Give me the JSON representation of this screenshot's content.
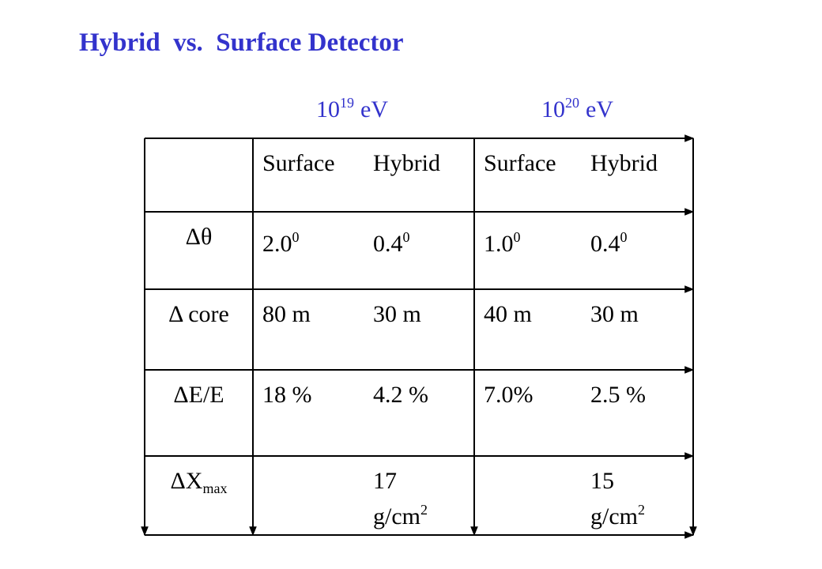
{
  "title": "Hybrid  vs.  Surface Detector",
  "energies": [
    {
      "base": "10",
      "exponent": "19",
      "unit": "eV"
    },
    {
      "base": "10",
      "exponent": "20",
      "unit": "eV"
    }
  ],
  "table": {
    "rows": [
      [
        {
          "lines": []
        },
        {
          "lines": [
            [
              {
                "text": "Surface"
              }
            ]
          ]
        },
        {
          "lines": [
            [
              {
                "text": "Hybrid"
              }
            ]
          ]
        },
        {
          "lines": [
            [
              {
                "text": "Surface"
              }
            ]
          ]
        },
        {
          "lines": [
            [
              {
                "text": "Hybrid"
              }
            ]
          ]
        }
      ],
      [
        {
          "lines": [
            [
              {
                "text": "Δθ"
              }
            ]
          ]
        },
        {
          "lines": [
            [
              {
                "text": "2.0"
              },
              {
                "text": "0",
                "pos": "sup"
              }
            ]
          ]
        },
        {
          "lines": [
            [
              {
                "text": "0.4"
              },
              {
                "text": "0",
                "pos": "sup"
              }
            ]
          ]
        },
        {
          "lines": [
            [
              {
                "text": "1.0"
              },
              {
                "text": "0",
                "pos": "sup"
              }
            ]
          ]
        },
        {
          "lines": [
            [
              {
                "text": "0.4"
              },
              {
                "text": "0",
                "pos": "sup"
              }
            ]
          ]
        }
      ],
      [
        {
          "lines": [
            [
              {
                "text": "Δ core"
              }
            ]
          ]
        },
        {
          "lines": [
            [
              {
                "text": "80 m"
              }
            ]
          ]
        },
        {
          "lines": [
            [
              {
                "text": "30 m"
              }
            ]
          ]
        },
        {
          "lines": [
            [
              {
                "text": "40 m"
              }
            ]
          ]
        },
        {
          "lines": [
            [
              {
                "text": "30 m"
              }
            ]
          ]
        }
      ],
      [
        {
          "lines": [
            [
              {
                "text": "ΔE/E"
              }
            ]
          ]
        },
        {
          "lines": [
            [
              {
                "text": "18 %"
              }
            ]
          ]
        },
        {
          "lines": [
            [
              {
                "text": "4.2 %"
              }
            ]
          ]
        },
        {
          "lines": [
            [
              {
                "text": "7.0%"
              }
            ]
          ]
        },
        {
          "lines": [
            [
              {
                "text": "2.5 %"
              }
            ]
          ]
        }
      ],
      [
        {
          "lines": [
            [
              {
                "text": "ΔX"
              },
              {
                "text": "max",
                "pos": "sub"
              }
            ]
          ]
        },
        {
          "lines": []
        },
        {
          "lines": [
            [
              {
                "text": "17"
              }
            ],
            [
              {
                "text": "g/cm"
              },
              {
                "text": "2",
                "pos": "sup"
              }
            ]
          ]
        },
        {
          "lines": []
        },
        {
          "lines": [
            [
              {
                "text": "15"
              }
            ],
            [
              {
                "text": "g/cm"
              },
              {
                "text": "2",
                "pos": "sup"
              }
            ]
          ]
        }
      ]
    ]
  }
}
